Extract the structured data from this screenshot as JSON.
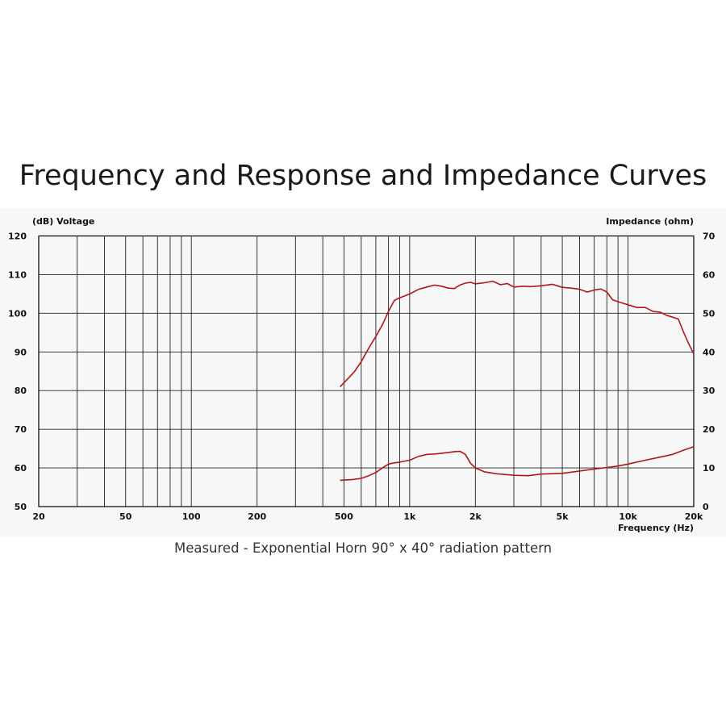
{
  "title": "Frequency and Response and Impedance Curves",
  "caption": "Measured - Exponential Horn 90° x 40° radiation pattern",
  "chart_data": {
    "type": "line",
    "x_scale": "log",
    "xlim": [
      20,
      20000
    ],
    "ylim": [
      50,
      120
    ],
    "y2lim": [
      0,
      70
    ],
    "grid": true,
    "left_axis_label": "(dB)  Voltage",
    "right_axis_label": "Impedance  (ohm)",
    "xlabel": "Frequency  (Hz)",
    "x_ticks": [
      {
        "value": 20,
        "label": "20"
      },
      {
        "value": 50,
        "label": "50"
      },
      {
        "value": 100,
        "label": "100"
      },
      {
        "value": 200,
        "label": "200"
      },
      {
        "value": 500,
        "label": "500"
      },
      {
        "value": 1000,
        "label": "1k"
      },
      {
        "value": 2000,
        "label": "2k"
      },
      {
        "value": 5000,
        "label": "5k"
      },
      {
        "value": 10000,
        "label": "10k"
      },
      {
        "value": 20000,
        "label": "20k"
      }
    ],
    "y_ticks": [
      "50",
      "60",
      "70",
      "80",
      "90",
      "100",
      "110",
      "120"
    ],
    "y2_ticks": [
      "0",
      "10",
      "20",
      "30",
      "40",
      "50",
      "60",
      "70"
    ],
    "line_color": "#b01818",
    "series": [
      {
        "axis": "left",
        "x": [
          480,
          520,
          560,
          600,
          650,
          700,
          750,
          800,
          850,
          900,
          1000,
          1100,
          1200,
          1300,
          1400,
          1500,
          1600,
          1700,
          1800,
          1900,
          2000,
          2200,
          2400,
          2600,
          2800,
          3000,
          3300,
          3600,
          4000,
          4500,
          5000,
          5500,
          6000,
          6500,
          7000,
          7500,
          8000,
          8500,
          9000,
          10000,
          11000,
          12000,
          13000,
          14000,
          15000,
          16000,
          17000,
          18000,
          19000,
          20000
        ],
        "y": [
          81,
          83,
          85,
          87.5,
          91,
          94,
          97,
          100.5,
          103.3,
          104,
          105,
          106.2,
          106.8,
          107.3,
          107,
          106.5,
          106.4,
          107.3,
          107.8,
          108,
          107.6,
          107.9,
          108.3,
          107.4,
          107.7,
          106.8,
          107,
          106.9,
          107.1,
          107.5,
          106.7,
          106.5,
          106.2,
          105.5,
          106,
          106.3,
          105.5,
          103.5,
          103,
          102.2,
          101.5,
          101.5,
          100.5,
          100.3,
          99.5,
          99,
          98.5,
          95,
          92,
          89.5
        ]
      },
      {
        "axis": "right",
        "x": [
          480,
          550,
          600,
          650,
          700,
          750,
          800,
          850,
          900,
          1000,
          1100,
          1200,
          1300,
          1400,
          1500,
          1600,
          1700,
          1800,
          1900,
          2000,
          2200,
          2500,
          3000,
          3500,
          4000,
          5000,
          6000,
          7000,
          8000,
          9000,
          10000,
          12000,
          14000,
          16000,
          18000,
          20000
        ],
        "y": [
          6.8,
          7,
          7.3,
          8,
          8.8,
          10,
          11,
          11.3,
          11.5,
          12,
          13,
          13.5,
          13.6,
          13.8,
          14,
          14.2,
          14.3,
          13.5,
          11.2,
          10,
          9,
          8.5,
          8.1,
          8,
          8.4,
          8.6,
          9.2,
          9.7,
          10.1,
          10.5,
          11,
          12,
          12.8,
          13.5,
          14.6,
          15.5
        ]
      }
    ]
  }
}
